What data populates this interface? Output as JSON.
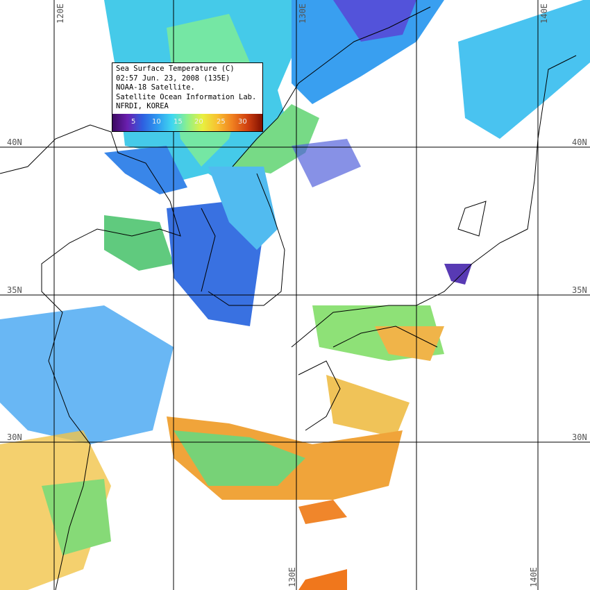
{
  "legend": {
    "lines": [
      "Sea Surface Temperature (C)",
      "02:57 Jun. 23, 2008 (135E)",
      "NOAA-18 Satellite.",
      "Satellite Ocean Information Lab.",
      "NFRDI, KOREA"
    ],
    "colorbar_ticks": [
      "5",
      "10",
      "15",
      "20",
      "25",
      "30"
    ],
    "colorbar_colors": [
      "#3b0a60",
      "#6a1fb0",
      "#2e5fe0",
      "#2f9af0",
      "#40d8f0",
      "#8df08a",
      "#e8f040",
      "#f8c030",
      "#f08020",
      "#d04010",
      "#801000"
    ]
  },
  "grid": {
    "lon_labels_top": [
      "120E",
      "130E",
      "140E"
    ],
    "lon_labels_bottom": [
      "130E",
      "140E"
    ],
    "lat_labels_left": [
      "40N",
      "35N",
      "30N"
    ],
    "lat_labels_right": [
      "40N",
      "35N",
      "30N"
    ]
  }
}
